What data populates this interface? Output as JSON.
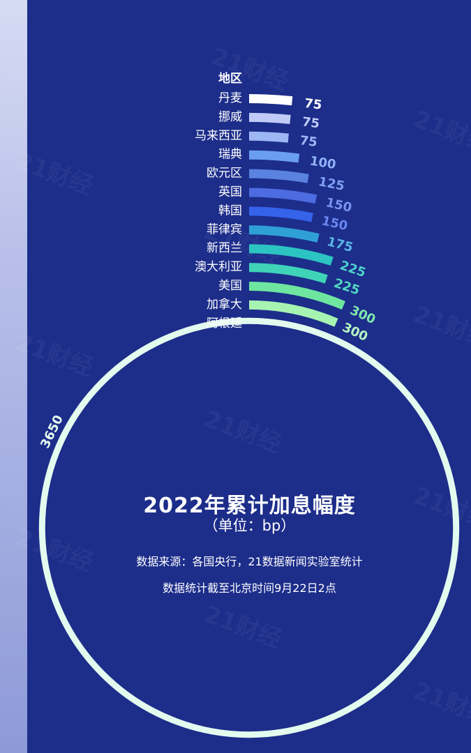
{
  "chart_data": {
    "type": "radial-bar",
    "title": "2022年累计加息幅度",
    "unit": "（单位：bp）",
    "category_header": "地区",
    "categories": [
      "丹麦",
      "挪威",
      "马来西亚",
      "瑞典",
      "欧元区",
      "英国",
      "韩国",
      "菲律宾",
      "新西兰",
      "澳大利亚",
      "美国",
      "加拿大",
      "阿根廷"
    ],
    "values": [
      75,
      75,
      75,
      100,
      125,
      150,
      150,
      175,
      225,
      225,
      300,
      300,
      3650
    ],
    "value_labels": [
      "75",
      "75",
      "75",
      "100",
      "125",
      "150",
      "150",
      "175",
      "225",
      "225",
      "300",
      "300",
      "3650"
    ],
    "colors": [
      "#ffffff",
      "#c0ccf7",
      "#9db7f5",
      "#6a9ef2",
      "#5a82e0",
      "#4d6ce2",
      "#3563ea",
      "#2fa0d6",
      "#2cc4c2",
      "#3fd3b8",
      "#6ee6a0",
      "#a6f3b2",
      "#e3fbef"
    ],
    "label_colors": [
      "#ffffff",
      "#c0ccf7",
      "#9db7f5",
      "#8fb2f5",
      "#7fa0ee",
      "#7a92ee",
      "#6a86f0",
      "#5ab5e6",
      "#4fd2cc",
      "#52d9c1",
      "#7ee9ad",
      "#b5f5c2",
      "#e3fbef"
    ]
  },
  "annotations": {
    "source": "数据来源：各国央行，21数据新闻实验室统计",
    "cutoff": "数据统计截至北京时间9月22日2点"
  },
  "watermark": "21财经"
}
